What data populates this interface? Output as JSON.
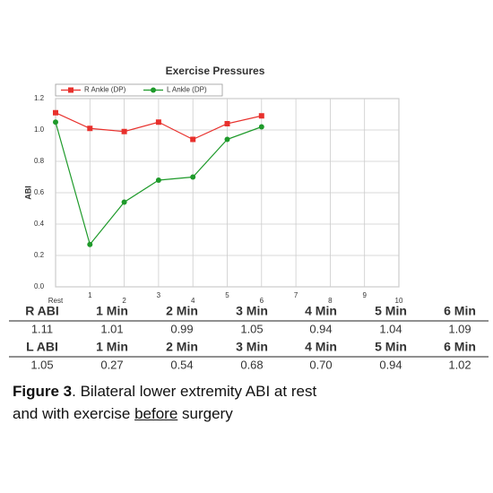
{
  "chart_data": {
    "type": "line",
    "title": "Exercise Pressures",
    "ylabel": "ABI",
    "categories": [
      "Rest",
      "1",
      "2",
      "3",
      "4",
      "5",
      "6",
      "7",
      "8",
      "9",
      "10"
    ],
    "series": [
      {
        "name": "R Ankle (DP)",
        "color": "#e8302c",
        "values": [
          1.11,
          1.01,
          0.99,
          1.05,
          0.94,
          1.04,
          1.09,
          null,
          null,
          null,
          null
        ]
      },
      {
        "name": "L Ankle (DP)",
        "color": "#1e9a2a",
        "values": [
          1.05,
          0.27,
          0.54,
          0.68,
          0.7,
          0.94,
          1.02,
          null,
          null,
          null,
          null
        ]
      }
    ],
    "ylim": [
      0,
      1.2
    ],
    "yticks": [
      {
        "value": 0,
        "label": "0.0"
      },
      0.2,
      0.4,
      0.6,
      0.8,
      {
        "value": 1,
        "label": "1.0"
      },
      1.2
    ],
    "grid": true,
    "legend": "top"
  },
  "table": {
    "rows": [
      [
        "R ABI",
        "1 Min",
        "2 Min",
        "3 Min",
        "4 Min",
        "5 Min",
        "6 Min"
      ],
      [
        "1.11",
        "1.01",
        "0.99",
        "1.05",
        "0.94",
        "1.04",
        "1.09"
      ],
      [
        "L ABI",
        "1 Min",
        "2 Min",
        "3 Min",
        "4 Min",
        "5 Min",
        "6 Min"
      ],
      [
        "1.05",
        "0.27",
        "0.54",
        "0.68",
        "0.70",
        "0.94",
        "1.02"
      ]
    ]
  },
  "caption": {
    "label": "Figure 3",
    "line1": ". Bilateral lower extremity ABI at rest",
    "line2": "and with exercise ",
    "emphasis": "before",
    "line3": " surgery"
  }
}
